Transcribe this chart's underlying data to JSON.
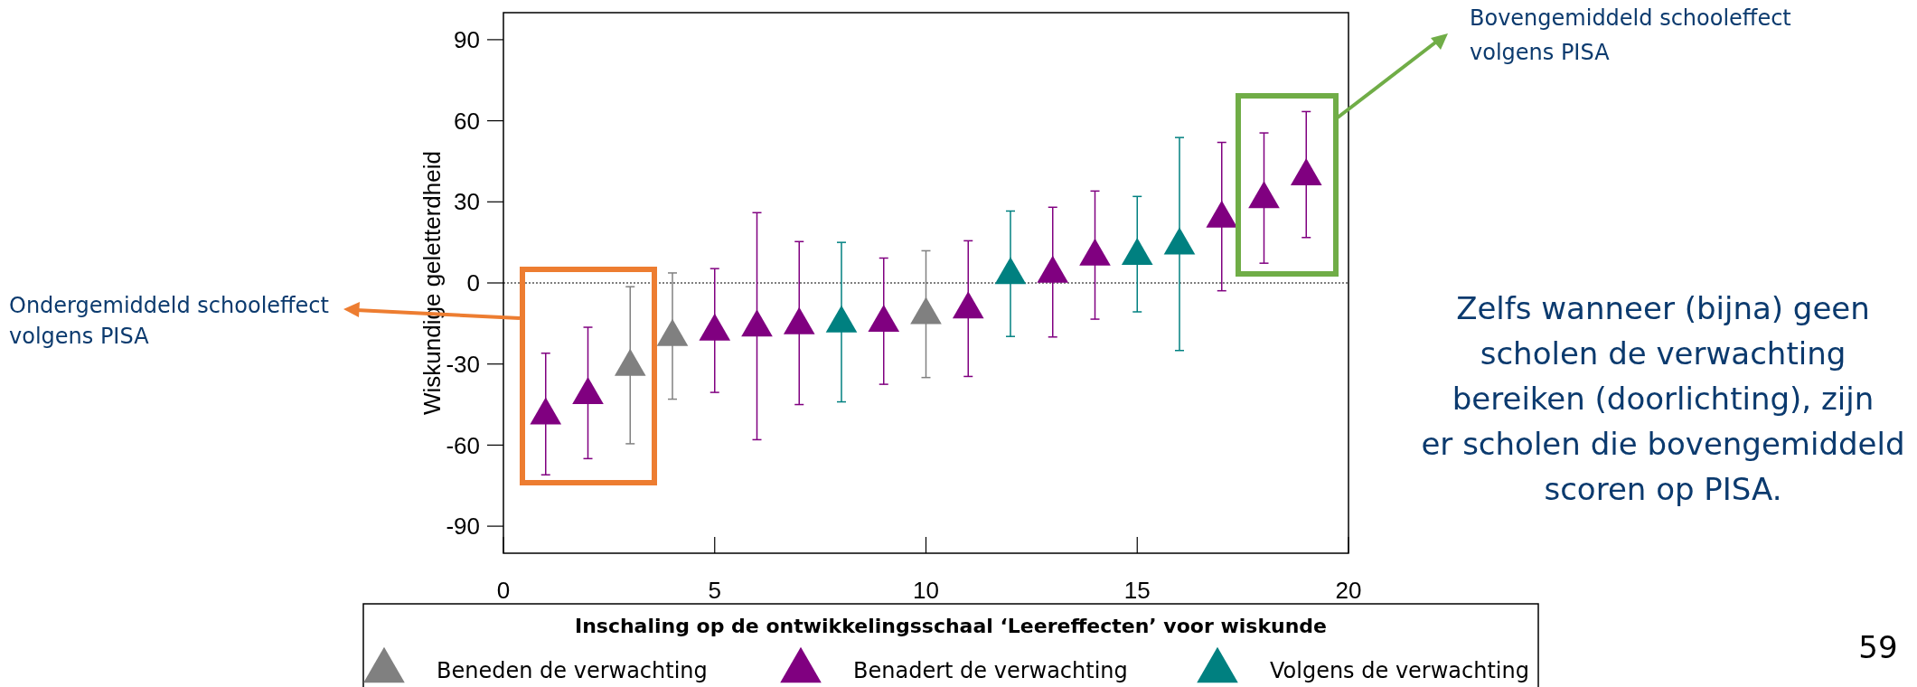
{
  "chart_data": {
    "type": "scatter",
    "ylabel": "Wiskundige geletterdheid",
    "xlim": [
      0,
      20
    ],
    "ylim": [
      -100,
      100
    ],
    "xticks": [
      0,
      5,
      10,
      15,
      20
    ],
    "yticks": [
      -90,
      -60,
      -30,
      0,
      30,
      60,
      90
    ],
    "grid": false,
    "marker": "triangle",
    "legend": "bottom",
    "legend_title": "Inschaling op de ontwikkelingsschaal ‘Leereffecten’ voor wiskunde",
    "ref_lines": [
      {
        "axis": "y",
        "value": 0,
        "color": "#000000",
        "line_style": "dotted"
      }
    ],
    "series": [
      {
        "name": "Beneden de verwachting",
        "color": "#808080",
        "x": [
          3,
          4,
          10
        ],
        "values": [
          -31,
          -20,
          -11.9
        ],
        "errors": [
          [
            -59.5,
            -1.4
          ],
          [
            -43,
            3.7
          ],
          [
            -35,
            11.9
          ]
        ]
      },
      {
        "name": "Benadert de verwachting",
        "color": "#800080",
        "x": [
          1,
          2,
          5,
          6,
          7,
          9,
          11,
          13,
          14,
          17,
          18,
          19
        ],
        "values": [
          -49,
          -41.5,
          -18,
          -16.5,
          -15.6,
          -14.7,
          -9.8,
          3.4,
          9.8,
          23.8,
          31,
          39.5
        ],
        "errors": [
          [
            -71,
            -26
          ],
          [
            -65,
            -16.4
          ],
          [
            -40.5,
            5.3
          ],
          [
            -58,
            26
          ],
          [
            -45,
            15.3
          ],
          [
            -37.5,
            9.2
          ],
          [
            -34.6,
            15.6
          ],
          [
            -20,
            28
          ],
          [
            -13.4,
            34
          ],
          [
            -2.9,
            52
          ],
          [
            7.3,
            55.5
          ],
          [
            16.8,
            63.4
          ]
        ]
      },
      {
        "name": "Volgens de verwachting",
        "color": "#008080",
        "x": [
          8,
          12,
          15,
          16
        ],
        "values": [
          -15,
          2.9,
          10,
          13.9
        ],
        "errors": [
          [
            -44,
            15
          ],
          [
            -19.8,
            26.6
          ],
          [
            -10.7,
            32
          ],
          [
            -25,
            53.8
          ]
        ]
      }
    ],
    "annotations": [
      "Ondergemiddeld schooleffect volgens PISA",
      "Bovengemiddeld schooleffect volgens PISA",
      "Zelfs wanneer (bijna) geen scholen de verwachting bereiken (doorlichting), zijn er scholen die bovengemiddeld scoren op PISA.",
      "59"
    ]
  }
}
